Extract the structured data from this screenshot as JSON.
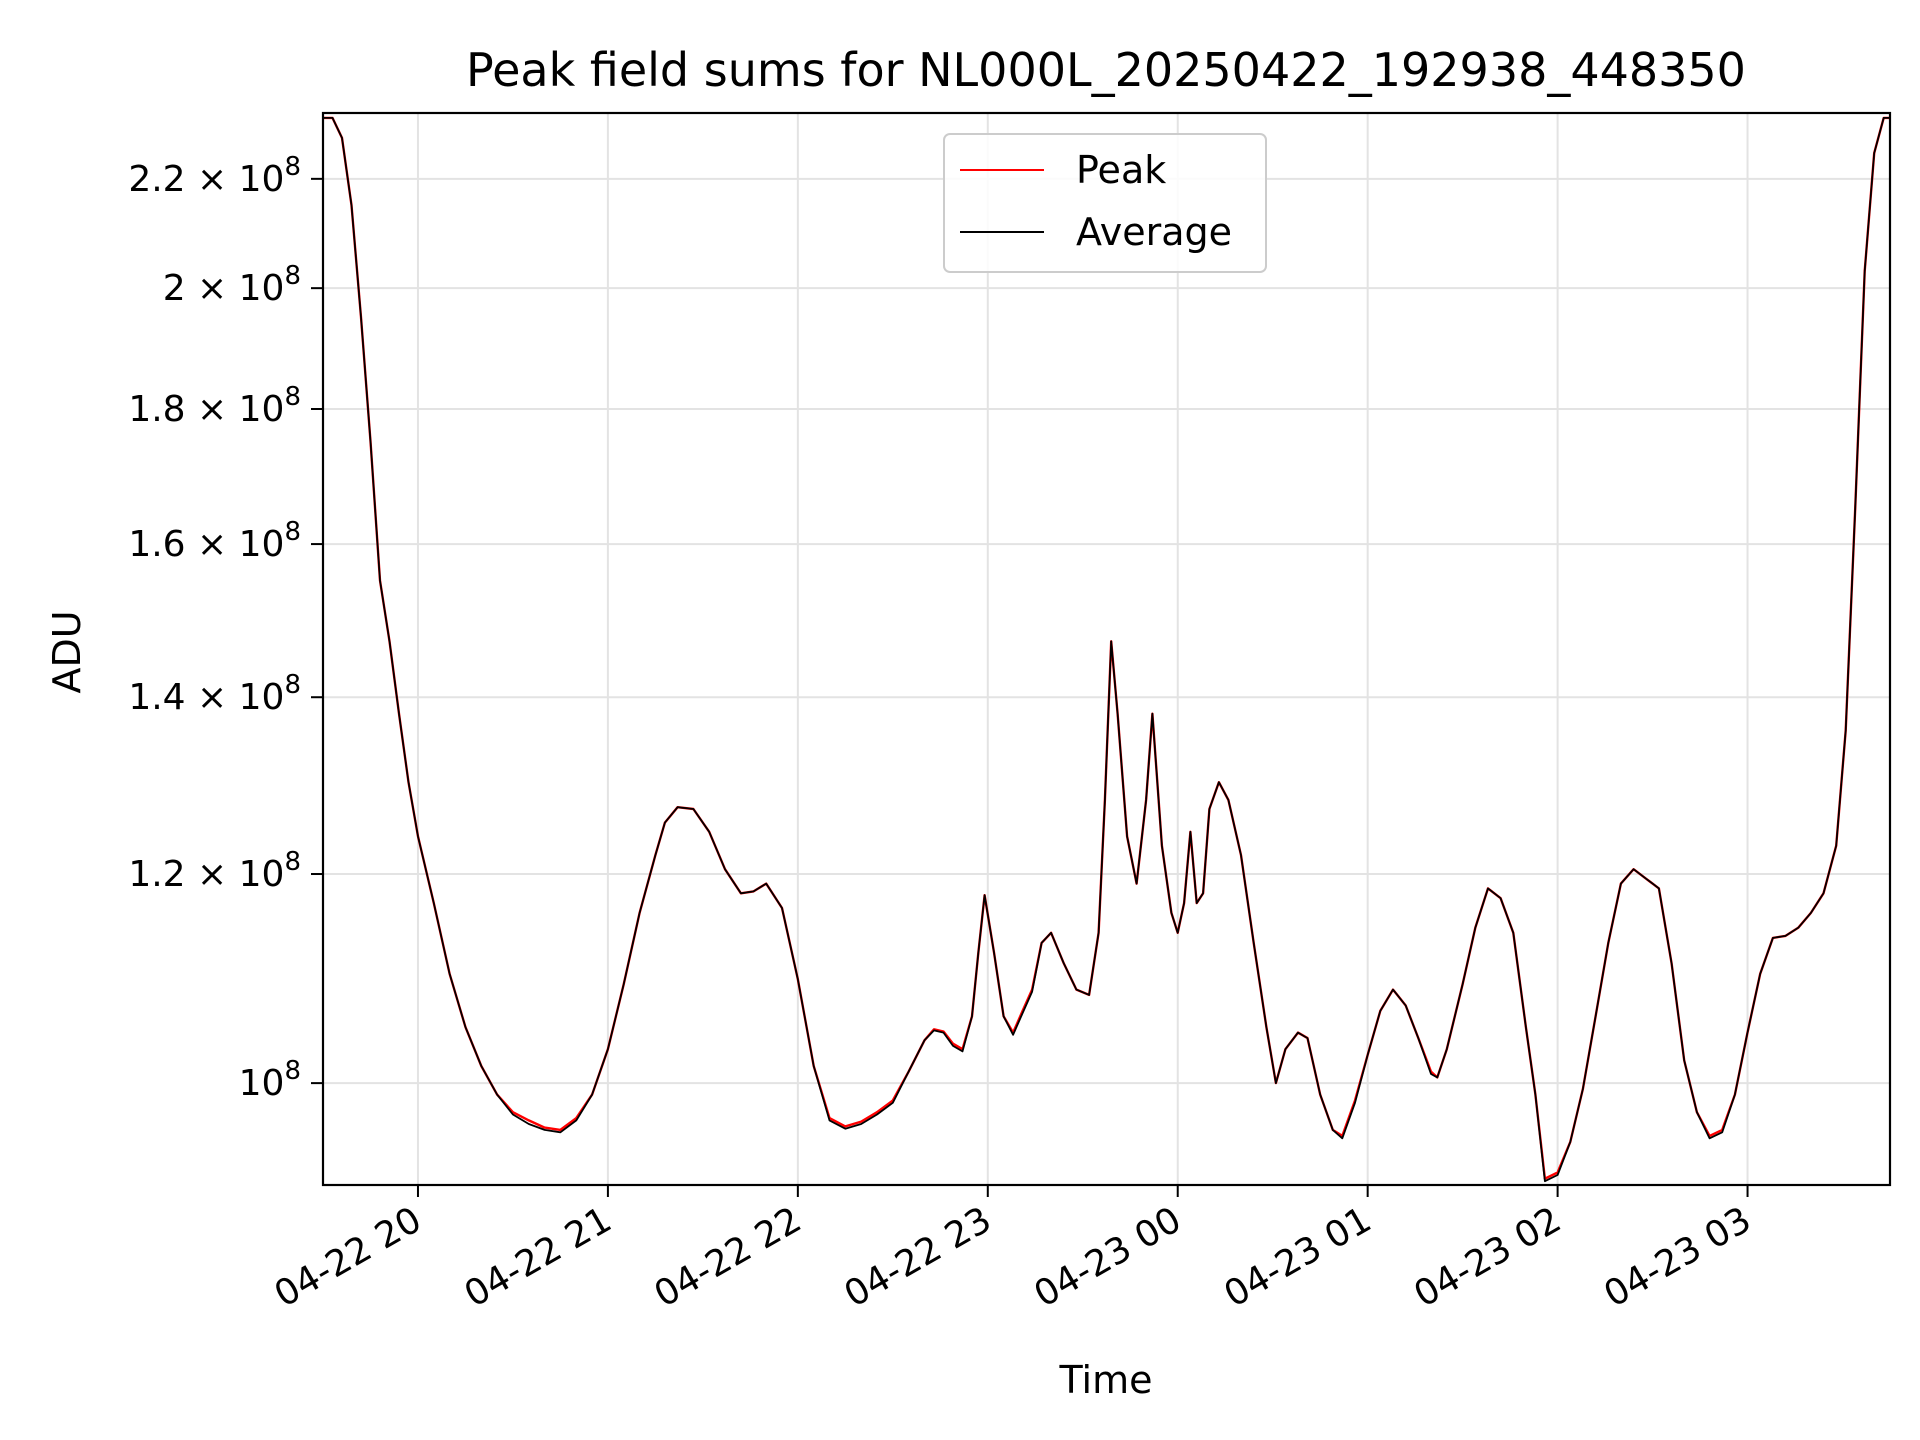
{
  "chart_data": {
    "type": "line",
    "title": "Peak field sums for NL000L_20250422_192938_448350",
    "xlabel": "Time",
    "ylabel": "ADU",
    "y_scale": "log",
    "ylim": [
      91500000,
      233000000
    ],
    "xlim": [
      "2025-04-22 19:30",
      "2025-04-23 03:45"
    ],
    "x_ticks": [
      "04-22 20",
      "04-22 21",
      "04-22 22",
      "04-22 23",
      "04-23 00",
      "04-23 01",
      "04-23 02",
      "04-23 03"
    ],
    "y_ticks": [
      {
        "value": 220000000,
        "mantissa": "2.2",
        "exponent": "8"
      },
      {
        "value": 200000000,
        "mantissa": "2",
        "exponent": "8"
      },
      {
        "value": 180000000,
        "mantissa": "1.8",
        "exponent": "8"
      },
      {
        "value": 160000000,
        "mantissa": "1.6",
        "exponent": "8"
      },
      {
        "value": 140000000,
        "mantissa": "1.4",
        "exponent": "8"
      },
      {
        "value": 120000000,
        "mantissa": "1.2",
        "exponent": "8"
      },
      {
        "value": 100000000,
        "mantissa": "",
        "exponent": "8"
      }
    ],
    "grid": true,
    "legend_position": "top-center",
    "series": [
      {
        "name": "Peak",
        "color": "#ff0000",
        "x": [
          "2025-04-22 19:30",
          "2025-04-22 19:33",
          "2025-04-22 19:36",
          "2025-04-22 19:39",
          "2025-04-22 19:42",
          "2025-04-22 19:45",
          "2025-04-22 19:48",
          "2025-04-22 19:51",
          "2025-04-22 19:54",
          "2025-04-22 19:57",
          "2025-04-22 20:00",
          "2025-04-22 20:05",
          "2025-04-22 20:10",
          "2025-04-22 20:15",
          "2025-04-22 20:20",
          "2025-04-22 20:25",
          "2025-04-22 20:30",
          "2025-04-22 20:35",
          "2025-04-22 20:40",
          "2025-04-22 20:45",
          "2025-04-22 20:50",
          "2025-04-22 20:55",
          "2025-04-22 21:00",
          "2025-04-22 21:05",
          "2025-04-22 21:10",
          "2025-04-22 21:15",
          "2025-04-22 21:18",
          "2025-04-22 21:22",
          "2025-04-22 21:27",
          "2025-04-22 21:32",
          "2025-04-22 21:37",
          "2025-04-22 21:42",
          "2025-04-22 21:46",
          "2025-04-22 21:50",
          "2025-04-22 21:55",
          "2025-04-22 22:00",
          "2025-04-22 22:05",
          "2025-04-22 22:10",
          "2025-04-22 22:15",
          "2025-04-22 22:20",
          "2025-04-22 22:25",
          "2025-04-22 22:30",
          "2025-04-22 22:35",
          "2025-04-22 22:40",
          "2025-04-22 22:43",
          "2025-04-22 22:46",
          "2025-04-22 22:49",
          "2025-04-22 22:52",
          "2025-04-22 22:55",
          "2025-04-22 22:57",
          "2025-04-22 22:59",
          "2025-04-22 23:02",
          "2025-04-22 23:05",
          "2025-04-22 23:08",
          "2025-04-22 23:11",
          "2025-04-22 23:14",
          "2025-04-22 23:17",
          "2025-04-22 23:20",
          "2025-04-22 23:24",
          "2025-04-22 23:28",
          "2025-04-22 23:32",
          "2025-04-22 23:35",
          "2025-04-22 23:37",
          "2025-04-22 23:39",
          "2025-04-22 23:41",
          "2025-04-22 23:44",
          "2025-04-22 23:47",
          "2025-04-22 23:50",
          "2025-04-22 23:52",
          "2025-04-22 23:55",
          "2025-04-22 23:58",
          "2025-04-23 00:00",
          "2025-04-23 00:02",
          "2025-04-23 00:04",
          "2025-04-23 00:06",
          "2025-04-23 00:08",
          "2025-04-23 00:10",
          "2025-04-23 00:13",
          "2025-04-23 00:16",
          "2025-04-23 00:20",
          "2025-04-23 00:24",
          "2025-04-23 00:28",
          "2025-04-23 00:31",
          "2025-04-23 00:34",
          "2025-04-23 00:38",
          "2025-04-23 00:41",
          "2025-04-23 00:45",
          "2025-04-23 00:49",
          "2025-04-23 00:52",
          "2025-04-23 00:56",
          "2025-04-23 01:00",
          "2025-04-23 01:04",
          "2025-04-23 01:08",
          "2025-04-23 01:12",
          "2025-04-23 01:16",
          "2025-04-23 01:20",
          "2025-04-23 01:22",
          "2025-04-23 01:25",
          "2025-04-23 01:30",
          "2025-04-23 01:34",
          "2025-04-23 01:38",
          "2025-04-23 01:42",
          "2025-04-23 01:46",
          "2025-04-23 01:50",
          "2025-04-23 01:53",
          "2025-04-23 01:56",
          "2025-04-23 02:00",
          "2025-04-23 02:04",
          "2025-04-23 02:08",
          "2025-04-23 02:12",
          "2025-04-23 02:16",
          "2025-04-23 02:20",
          "2025-04-23 02:24",
          "2025-04-23 02:28",
          "2025-04-23 02:32",
          "2025-04-23 02:36",
          "2025-04-23 02:40",
          "2025-04-23 02:44",
          "2025-04-23 02:48",
          "2025-04-23 02:52",
          "2025-04-23 02:56",
          "2025-04-23 03:00",
          "2025-04-23 03:04",
          "2025-04-23 03:08",
          "2025-04-23 03:12",
          "2025-04-23 03:16",
          "2025-04-23 03:20",
          "2025-04-23 03:24",
          "2025-04-23 03:28",
          "2025-04-23 03:31",
          "2025-04-23 03:34",
          "2025-04-23 03:37",
          "2025-04-23 03:40",
          "2025-04-23 03:43",
          "2025-04-23 03:45"
        ],
        "y": [
          232000000,
          232000000,
          228000000,
          215000000,
          195000000,
          175000000,
          155000000,
          147000000,
          138000000,
          130000000,
          124000000,
          117000000,
          110000000,
          105000000,
          101500000,
          99000000,
          97500000,
          96800000,
          96200000,
          96000000,
          97000000,
          99000000,
          103000000,
          109000000,
          116000000,
          122000000,
          125500000,
          127200000,
          127000000,
          124500000,
          120500000,
          118000000,
          118200000,
          119000000,
          116500000,
          109500000,
          101500000,
          97000000,
          96300000,
          96700000,
          97500000,
          98500000,
          101000000,
          103800000,
          104800000,
          104600000,
          103500000,
          103000000,
          106000000,
          112000000,
          117800000,
          112000000,
          106000000,
          104500000,
          106500000,
          108500000,
          113000000,
          114000000,
          111000000,
          108500000,
          108000000,
          114000000,
          128000000,
          147000000,
          138000000,
          124000000,
          119000000,
          128000000,
          138000000,
          123000000,
          116000000,
          114000000,
          117000000,
          124500000,
          117000000,
          118000000,
          127000000,
          130000000,
          128000000,
          122000000,
          113000000,
          105000000,
          100000000,
          103000000,
          104500000,
          104000000,
          99000000,
          96000000,
          95500000,
          98500000,
          102500000,
          106500000,
          108500000,
          107000000,
          104000000,
          101000000,
          100500000,
          103000000,
          109000000,
          114500000,
          118500000,
          117500000,
          114000000,
          105000000,
          99000000,
          92000000,
          92500000,
          95000000,
          99500000,
          106000000,
          113000000,
          119000000,
          120500000,
          119500000,
          118500000,
          111000000,
          102000000,
          97500000,
          95500000,
          96000000,
          99000000,
          104500000,
          110000000,
          113500000,
          113700000,
          114500000,
          116000000,
          118000000,
          123000000,
          136000000,
          165000000,
          203000000,
          225000000,
          232000000,
          232000000
        ]
      },
      {
        "name": "Average",
        "color": "#000000",
        "x": [
          "2025-04-22 19:30",
          "2025-04-22 19:33",
          "2025-04-22 19:36",
          "2025-04-22 19:39",
          "2025-04-22 19:42",
          "2025-04-22 19:45",
          "2025-04-22 19:48",
          "2025-04-22 19:51",
          "2025-04-22 19:54",
          "2025-04-22 19:57",
          "2025-04-22 20:00",
          "2025-04-22 20:05",
          "2025-04-22 20:10",
          "2025-04-22 20:15",
          "2025-04-22 20:20",
          "2025-04-22 20:25",
          "2025-04-22 20:30",
          "2025-04-22 20:35",
          "2025-04-22 20:40",
          "2025-04-22 20:45",
          "2025-04-22 20:50",
          "2025-04-22 20:55",
          "2025-04-22 21:00",
          "2025-04-22 21:05",
          "2025-04-22 21:10",
          "2025-04-22 21:15",
          "2025-04-22 21:18",
          "2025-04-22 21:22",
          "2025-04-22 21:27",
          "2025-04-22 21:32",
          "2025-04-22 21:37",
          "2025-04-22 21:42",
          "2025-04-22 21:46",
          "2025-04-22 21:50",
          "2025-04-22 21:55",
          "2025-04-22 22:00",
          "2025-04-22 22:05",
          "2025-04-22 22:10",
          "2025-04-22 22:15",
          "2025-04-22 22:20",
          "2025-04-22 22:25",
          "2025-04-22 22:30",
          "2025-04-22 22:35",
          "2025-04-22 22:40",
          "2025-04-22 22:43",
          "2025-04-22 22:46",
          "2025-04-22 22:49",
          "2025-04-22 22:52",
          "2025-04-22 22:55",
          "2025-04-22 22:57",
          "2025-04-22 22:59",
          "2025-04-22 23:02",
          "2025-04-22 23:05",
          "2025-04-22 23:08",
          "2025-04-22 23:11",
          "2025-04-22 23:14",
          "2025-04-22 23:17",
          "2025-04-22 23:20",
          "2025-04-22 23:24",
          "2025-04-22 23:28",
          "2025-04-22 23:32",
          "2025-04-22 23:35",
          "2025-04-22 23:37",
          "2025-04-22 23:39",
          "2025-04-22 23:41",
          "2025-04-22 23:44",
          "2025-04-22 23:47",
          "2025-04-22 23:50",
          "2025-04-22 23:52",
          "2025-04-22 23:55",
          "2025-04-22 23:58",
          "2025-04-23 00:00",
          "2025-04-23 00:02",
          "2025-04-23 00:04",
          "2025-04-23 00:06",
          "2025-04-23 00:08",
          "2025-04-23 00:10",
          "2025-04-23 00:13",
          "2025-04-23 00:16",
          "2025-04-23 00:20",
          "2025-04-23 00:24",
          "2025-04-23 00:28",
          "2025-04-23 00:31",
          "2025-04-23 00:34",
          "2025-04-23 00:38",
          "2025-04-23 00:41",
          "2025-04-23 00:45",
          "2025-04-23 00:49",
          "2025-04-23 00:52",
          "2025-04-23 00:56",
          "2025-04-23 01:00",
          "2025-04-23 01:04",
          "2025-04-23 01:08",
          "2025-04-23 01:12",
          "2025-04-23 01:16",
          "2025-04-23 01:20",
          "2025-04-23 01:22",
          "2025-04-23 01:25",
          "2025-04-23 01:30",
          "2025-04-23 01:34",
          "2025-04-23 01:38",
          "2025-04-23 01:42",
          "2025-04-23 01:46",
          "2025-04-23 01:50",
          "2025-04-23 01:53",
          "2025-04-23 01:56",
          "2025-04-23 02:00",
          "2025-04-23 02:04",
          "2025-04-23 02:08",
          "2025-04-23 02:12",
          "2025-04-23 02:16",
          "2025-04-23 02:20",
          "2025-04-23 02:24",
          "2025-04-23 02:28",
          "2025-04-23 02:32",
          "2025-04-23 02:36",
          "2025-04-23 02:40",
          "2025-04-23 02:44",
          "2025-04-23 02:48",
          "2025-04-23 02:52",
          "2025-04-23 02:56",
          "2025-04-23 03:00",
          "2025-04-23 03:04",
          "2025-04-23 03:08",
          "2025-04-23 03:12",
          "2025-04-23 03:16",
          "2025-04-23 03:20",
          "2025-04-23 03:24",
          "2025-04-23 03:28",
          "2025-04-23 03:31",
          "2025-04-23 03:34",
          "2025-04-23 03:37",
          "2025-04-23 03:40",
          "2025-04-23 03:43",
          "2025-04-23 03:45"
        ],
        "y": [
          232000000,
          232000000,
          228000000,
          215000000,
          195000000,
          175000000,
          155000000,
          147000000,
          138000000,
          130000000,
          124000000,
          117000000,
          110000000,
          105000000,
          101500000,
          99000000,
          97300000,
          96500000,
          96000000,
          95800000,
          96800000,
          99000000,
          103000000,
          109000000,
          116000000,
          122000000,
          125500000,
          127200000,
          127000000,
          124500000,
          120500000,
          118000000,
          118200000,
          119000000,
          116500000,
          109500000,
          101500000,
          96800000,
          96100000,
          96500000,
          97300000,
          98300000,
          101000000,
          103800000,
          104700000,
          104500000,
          103300000,
          102800000,
          106000000,
          112000000,
          117800000,
          112000000,
          106000000,
          104300000,
          106300000,
          108300000,
          113000000,
          114000000,
          111000000,
          108500000,
          108000000,
          114000000,
          128000000,
          147000000,
          138000000,
          124000000,
          119000000,
          128000000,
          138000000,
          123000000,
          116000000,
          114000000,
          117000000,
          124500000,
          117000000,
          118000000,
          127000000,
          130000000,
          128000000,
          122000000,
          113000000,
          105000000,
          100000000,
          103000000,
          104500000,
          104000000,
          99000000,
          96000000,
          95300000,
          98300000,
          102500000,
          106500000,
          108500000,
          107000000,
          104000000,
          100800000,
          100500000,
          103000000,
          109000000,
          114500000,
          118500000,
          117500000,
          114000000,
          105000000,
          99000000,
          91800000,
          92300000,
          95000000,
          99500000,
          106000000,
          113000000,
          119000000,
          120500000,
          119500000,
          118500000,
          111000000,
          102000000,
          97500000,
          95300000,
          95800000,
          99000000,
          104500000,
          110000000,
          113500000,
          113700000,
          114500000,
          116000000,
          118000000,
          123000000,
          136000000,
          165000000,
          203000000,
          225000000,
          232000000,
          232000000
        ]
      }
    ]
  }
}
